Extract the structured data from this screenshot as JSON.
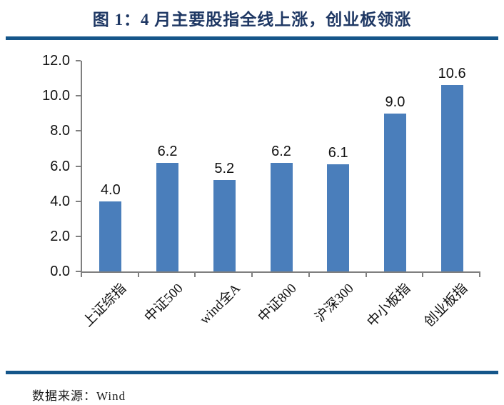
{
  "figure": {
    "title": "图 1：4 月主要股指全线上涨，创业板领涨",
    "source_label": "数据来源：Wind"
  },
  "chart_data": {
    "type": "bar",
    "title": "图 1：4 月主要股指全线上涨，创业板领涨",
    "categories": [
      "上证综指",
      "中证500",
      "wind全A",
      "中证800",
      "沪深300",
      "中小板指",
      "创业板指"
    ],
    "values": [
      4.0,
      6.2,
      5.2,
      6.2,
      6.1,
      9.0,
      10.6
    ],
    "value_labels": [
      "4.0",
      "6.2",
      "5.2",
      "6.2",
      "6.1",
      "9.0",
      "10.6"
    ],
    "xlabel": "",
    "ylabel": "",
    "ylim": [
      0,
      12
    ],
    "ytick_labels": [
      "0.0",
      "2.0",
      "4.0",
      "6.0",
      "8.0",
      "10.0",
      "12.0"
    ],
    "grid": false,
    "legend": "none",
    "source": "Wind"
  },
  "colors": {
    "bar": "#4a7ebb",
    "axis": "#7f7f7f",
    "title": "#1f3864",
    "rule": "#15568a",
    "label_text": "#111111"
  }
}
